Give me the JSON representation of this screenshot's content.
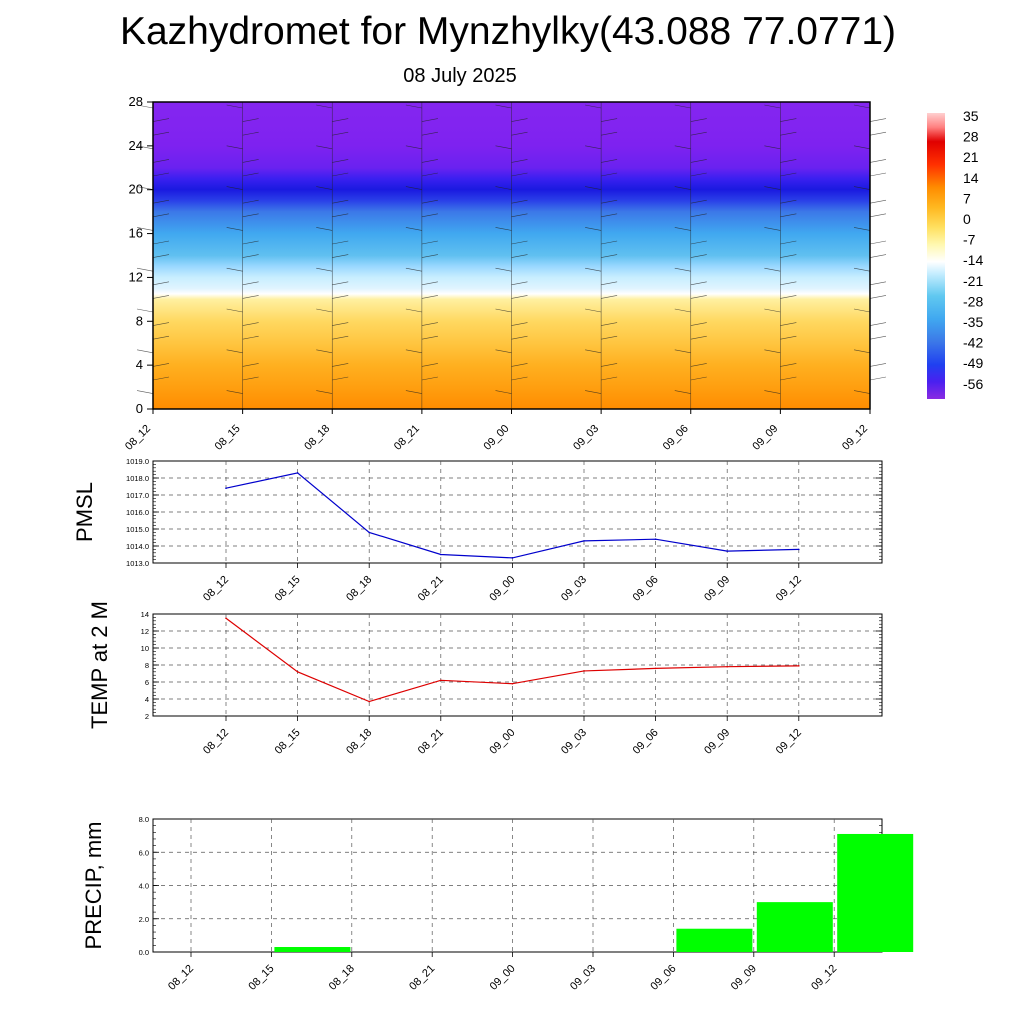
{
  "page": {
    "title": "Kazhydromet for Mynzhylky(43.088 77.0771)",
    "subtitle": "08 July 2025"
  },
  "chart_data": [
    {
      "type": "heatmap",
      "title": "",
      "xlabel": "",
      "ylabel": "",
      "categories": [
        "08_12",
        "08_15",
        "08_18",
        "08_21",
        "09_00",
        "09_03",
        "09_06",
        "09_09",
        "09_12"
      ],
      "y_ticks": [
        0,
        4,
        8,
        12,
        16,
        20,
        24,
        28
      ],
      "ylim": [
        0,
        28
      ],
      "colorbar_labels": [
        "35",
        "28",
        "21",
        "14",
        "7",
        "0",
        "-7",
        "-14",
        "-21",
        "-28",
        "-35",
        "-42",
        "-49",
        "-56"
      ],
      "profile": {
        "heights": [
          0,
          2,
          4,
          6,
          8,
          10,
          10.5,
          11,
          12,
          13,
          14,
          16,
          18,
          19,
          20,
          21,
          22,
          24,
          26,
          28
        ],
        "colors": [
          "#ff8c00",
          "#ff9f10",
          "#ffb020",
          "#ffc540",
          "#ffd860",
          "#fff0a0",
          "#ffffff",
          "#e0f4ff",
          "#c8eeff",
          "#9ad8ff",
          "#60c0f0",
          "#40a8f0",
          "#3c78e8",
          "#2a40e8",
          "#1a1ae0",
          "#3a20f0",
          "#6a22f0",
          "#7e22f0",
          "#8224f0",
          "#8426f0"
        ]
      },
      "grid": false
    },
    {
      "type": "line",
      "ylabel": "PMSL",
      "categories": [
        "08_12",
        "08_15",
        "08_18",
        "08_21",
        "09_00",
        "09_03",
        "09_06",
        "09_09",
        "09_12"
      ],
      "series": [
        {
          "values": [
            1017.4,
            1018.3,
            1014.8,
            1013.5,
            1013.3,
            1014.3,
            1014.4,
            1013.7,
            1013.8
          ]
        }
      ],
      "y_ticks": [
        "1013.0",
        "1014.0",
        "1015.0",
        "1016.0",
        "1017.0",
        "1018.0",
        "1019.0"
      ],
      "ylim": [
        1013,
        1019
      ],
      "color": "#0000cc",
      "grid": true
    },
    {
      "type": "line",
      "ylabel": "TEMP at 2 M",
      "categories": [
        "08_12",
        "08_15",
        "08_18",
        "08_21",
        "09_00",
        "09_03",
        "09_06",
        "09_09",
        "09_12"
      ],
      "series": [
        {
          "values": [
            13.5,
            7.2,
            3.7,
            6.2,
            5.8,
            7.3,
            7.6,
            7.8,
            7.9
          ]
        }
      ],
      "y_ticks": [
        "2",
        "4",
        "6",
        "8",
        "10",
        "12",
        "14"
      ],
      "ylim": [
        2,
        14
      ],
      "color": "#dd0000",
      "grid": true
    },
    {
      "type": "bar",
      "ylabel": "PRECIP, mm",
      "categories": [
        "08_12",
        "08_15",
        "08_18",
        "08_21",
        "09_00",
        "09_03",
        "09_06",
        "09_09",
        "09_12"
      ],
      "values": [
        0,
        0.3,
        0,
        0,
        0,
        0,
        1.4,
        3.0,
        7.1
      ],
      "y_ticks": [
        "0.0",
        "2.0",
        "4.0",
        "6.0",
        "8.0"
      ],
      "ylim": [
        0,
        8
      ],
      "color": "#00ff00",
      "grid": true
    }
  ]
}
